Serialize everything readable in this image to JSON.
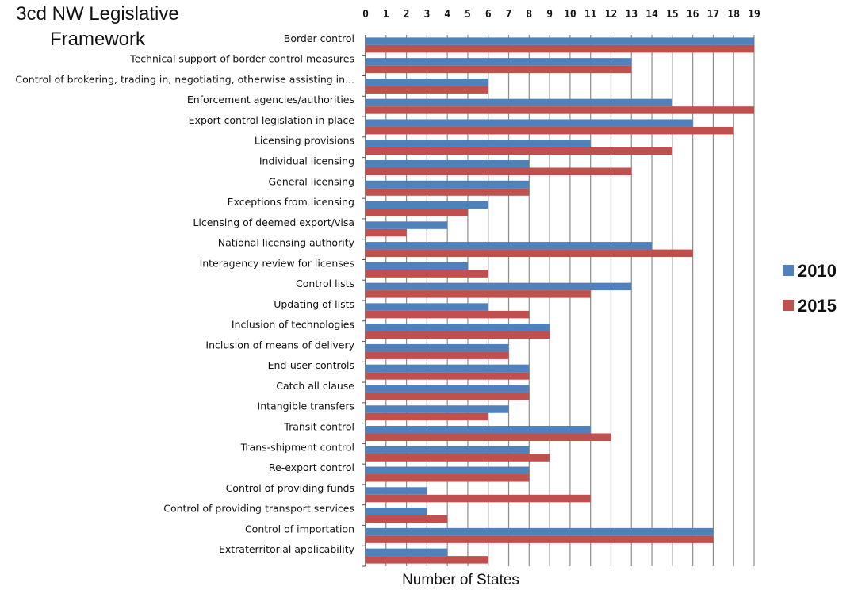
{
  "chart_data": {
    "type": "bar",
    "orientation": "horizontal",
    "title": "3cd NW Legislative Framework",
    "xlabel": "Number of States",
    "ylabel": "",
    "xlim": [
      0,
      19
    ],
    "x_ticks": [
      0,
      1,
      2,
      3,
      4,
      5,
      6,
      7,
      8,
      9,
      10,
      11,
      12,
      13,
      14,
      15,
      16,
      17,
      18,
      19
    ],
    "x_axis_position": "top",
    "grid": true,
    "legend_position": "right",
    "categories": [
      "Border control",
      "Technical support of border control measures",
      "Control of brokering, trading in, negotiating, otherwise assisting in...",
      "Enforcement agencies/authorities",
      "Export control legislation in place",
      "Licensing provisions",
      "Individual licensing",
      "General licensing",
      "Exceptions from licensing",
      "Licensing of deemed export/visa",
      "National licensing authority",
      "Interagency review for licenses",
      "Control lists",
      "Updating of lists",
      "Inclusion of technologies",
      "Inclusion of means of delivery",
      "End-user controls",
      "Catch all clause",
      "Intangible transfers",
      "Transit control",
      "Trans-shipment control",
      "Re-export control",
      "Control of providing funds",
      "Control of providing transport services",
      "Control of importation",
      "Extraterritorial applicability"
    ],
    "series": [
      {
        "name": "2010",
        "color": "#4F81BD",
        "values": [
          19,
          13,
          6,
          15,
          16,
          11,
          8,
          8,
          6,
          4,
          14,
          5,
          13,
          6,
          9,
          7,
          8,
          8,
          7,
          11,
          8,
          8,
          3,
          3,
          17,
          4
        ]
      },
      {
        "name": "2015",
        "color": "#C0504D",
        "values": [
          19,
          13,
          6,
          19,
          18,
          15,
          13,
          8,
          5,
          2,
          16,
          6,
          11,
          8,
          9,
          7,
          8,
          8,
          6,
          12,
          9,
          8,
          11,
          4,
          17,
          6
        ]
      }
    ]
  }
}
